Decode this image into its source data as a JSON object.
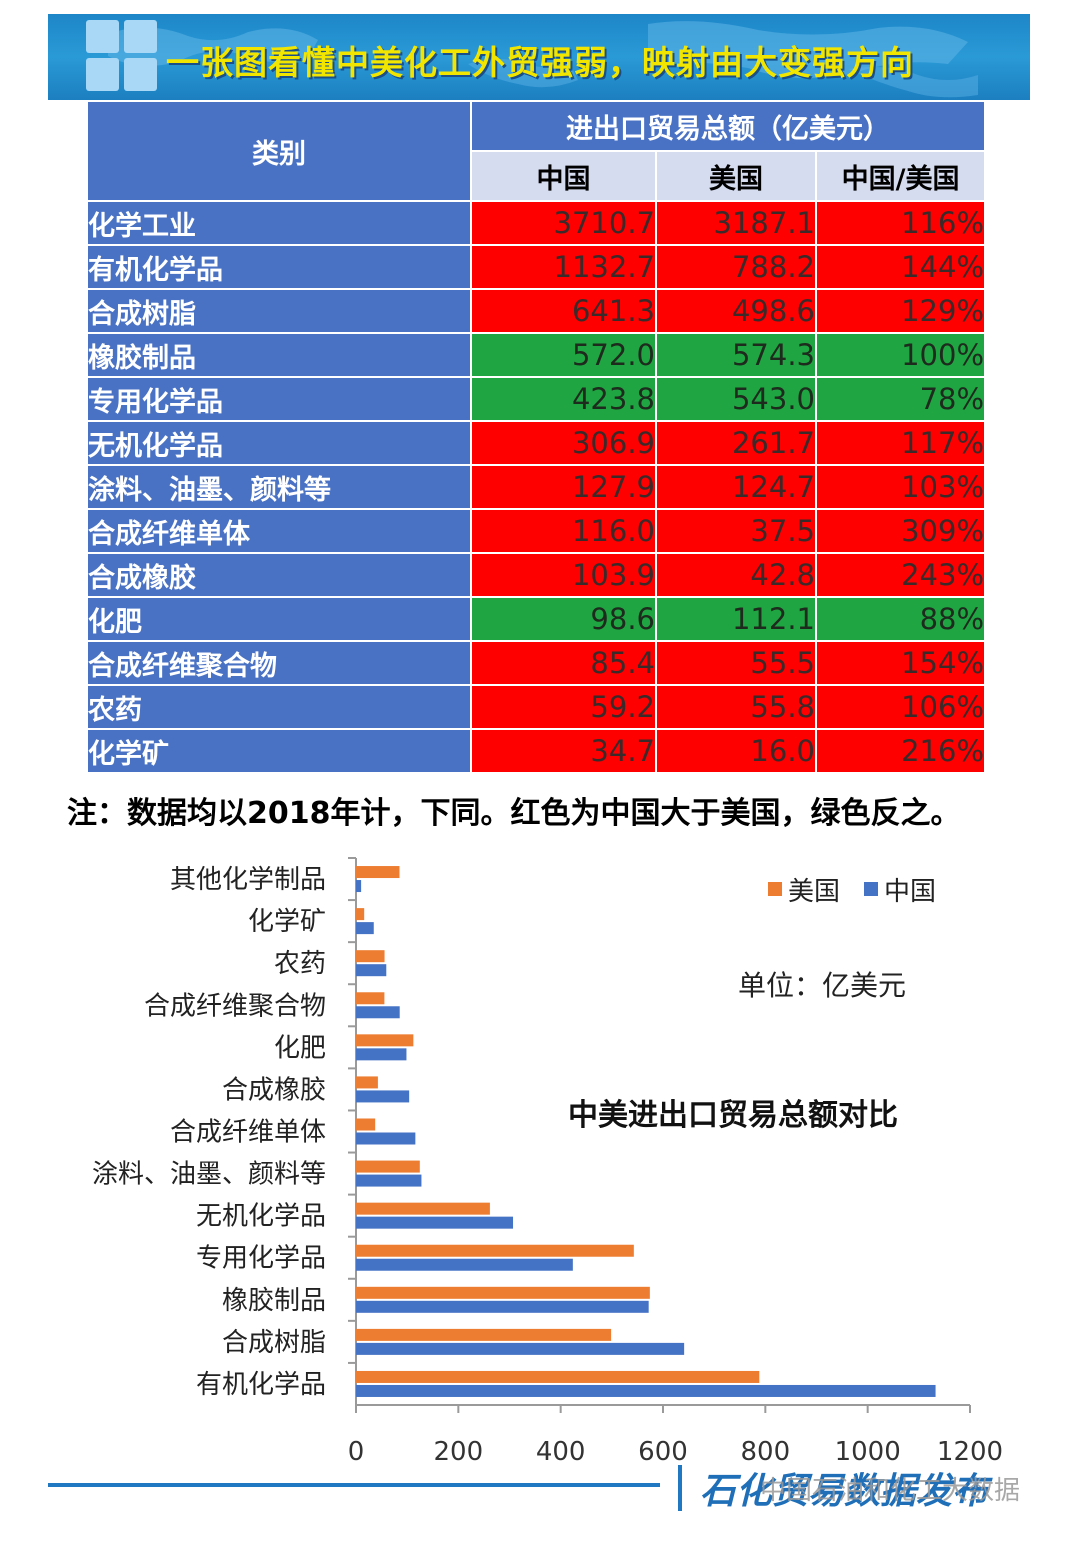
{
  "banner": {
    "title": "一张图看懂中美化工外贸强弱，映射由大变强方向"
  },
  "table": {
    "category_header": "类别",
    "group_header": "进出口贸易总额（亿美元）",
    "columns": [
      "中国",
      "美国",
      "中国/美国"
    ],
    "rows": [
      {
        "name": "化学工业",
        "level": 0,
        "china": "3710.7",
        "us": "3187.1",
        "ratio": "116%",
        "color": "red"
      },
      {
        "name": "有机化学品",
        "level": 1,
        "china": "1132.7",
        "us": "788.2",
        "ratio": "144%",
        "color": "red"
      },
      {
        "name": "合成树脂",
        "level": 1,
        "china": "641.3",
        "us": "498.6",
        "ratio": "129%",
        "color": "red"
      },
      {
        "name": "橡胶制品",
        "level": 1,
        "china": "572.0",
        "us": "574.3",
        "ratio": "100%",
        "color": "green"
      },
      {
        "name": "专用化学品",
        "level": 1,
        "china": "423.8",
        "us": "543.0",
        "ratio": "78%",
        "color": "green"
      },
      {
        "name": "无机化学品",
        "level": 1,
        "china": "306.9",
        "us": "261.7",
        "ratio": "117%",
        "color": "red"
      },
      {
        "name": "涂料、油墨、颜料等",
        "level": 1,
        "china": "127.9",
        "us": "124.7",
        "ratio": "103%",
        "color": "red"
      },
      {
        "name": "合成纤维单体",
        "level": 1,
        "china": "116.0",
        "us": "37.5",
        "ratio": "309%",
        "color": "red"
      },
      {
        "name": "合成橡胶",
        "level": 1,
        "china": "103.9",
        "us": "42.8",
        "ratio": "243%",
        "color": "red"
      },
      {
        "name": "化肥",
        "level": 1,
        "china": "98.6",
        "us": "112.1",
        "ratio": "88%",
        "color": "green"
      },
      {
        "name": "合成纤维聚合物",
        "level": 1,
        "china": "85.4",
        "us": "55.5",
        "ratio": "154%",
        "color": "red"
      },
      {
        "name": "农药",
        "level": 1,
        "china": "59.2",
        "us": "55.8",
        "ratio": "106%",
        "color": "red"
      },
      {
        "name": "化学矿",
        "level": 1,
        "china": "34.7",
        "us": "16.0",
        "ratio": "216%",
        "color": "red"
      }
    ]
  },
  "note": "注：数据均以2018年计，下同。红色为中国大于美国，绿色反之。",
  "colors": {
    "red": "#ff0000",
    "green": "#1fa642",
    "header_blue": "#4a72c4",
    "us_series": "#ed7d31",
    "china_series": "#4472c4"
  },
  "chart_data": {
    "type": "bar",
    "orientation": "horizontal",
    "title": "中美进出口贸易总额对比",
    "unit_note": "单位：亿美元",
    "categories": [
      "有机化学品",
      "合成树脂",
      "橡胶制品",
      "专用化学品",
      "无机化学品",
      "涂料、油墨、颜料等",
      "合成纤维单体",
      "合成橡胶",
      "化肥",
      "合成纤维聚合物",
      "农药",
      "化学矿",
      "其他化学制品"
    ],
    "series": [
      {
        "name": "美国",
        "values": [
          788.2,
          498.6,
          574.3,
          543.0,
          261.7,
          124.7,
          37.5,
          42.8,
          112.1,
          55.5,
          55.8,
          16.0,
          85
        ]
      },
      {
        "name": "中国",
        "values": [
          1132.7,
          641.3,
          572.0,
          423.8,
          306.9,
          127.9,
          116.0,
          103.9,
          98.6,
          85.4,
          59.2,
          34.7,
          10
        ]
      }
    ],
    "xlim": [
      0,
      1200
    ],
    "xticks": [
      0,
      200,
      400,
      600,
      800,
      1000,
      1200
    ],
    "legend": "top-right",
    "grid": false
  },
  "footer": {
    "brand": "石化贸易数据发布",
    "watermark": "中国石油和化工大数据"
  }
}
